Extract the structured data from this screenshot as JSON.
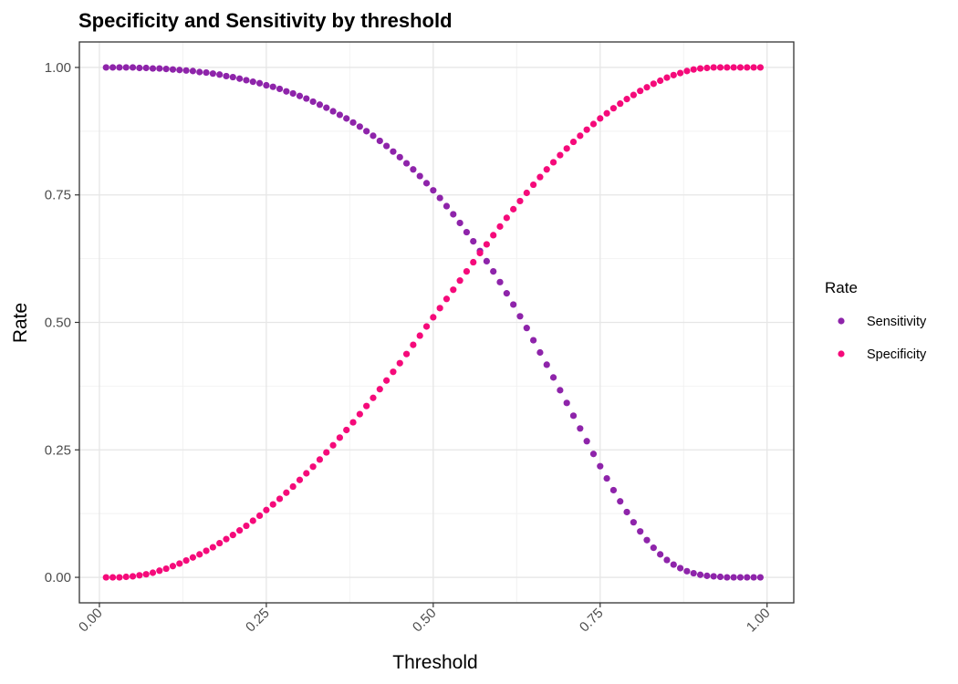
{
  "chart_data": {
    "type": "scatter",
    "title": "Specificity and Sensitivity by threshold",
    "xlabel": "Threshold",
    "ylabel": "Rate",
    "xlim": [
      -0.03,
      1.04
    ],
    "ylim": [
      -0.05,
      1.05
    ],
    "x_ticks": [
      0.0,
      0.25,
      0.5,
      0.75,
      1.0
    ],
    "x_tick_labels": [
      "0.00",
      "0.25",
      "0.50",
      "0.75",
      "1.00"
    ],
    "y_ticks": [
      0.0,
      0.25,
      0.5,
      0.75,
      1.0
    ],
    "y_tick_labels": [
      "0.00",
      "0.25",
      "0.50",
      "0.75",
      "1.00"
    ],
    "grid": true,
    "legend": {
      "title": "Rate",
      "placement": "right"
    },
    "x": [
      0.01,
      0.02,
      0.03,
      0.04,
      0.05,
      0.06,
      0.07,
      0.08,
      0.09,
      0.1,
      0.11,
      0.12,
      0.13,
      0.14,
      0.15,
      0.16,
      0.17,
      0.18,
      0.19,
      0.2,
      0.21,
      0.22,
      0.23,
      0.24,
      0.25,
      0.26,
      0.27,
      0.28,
      0.29,
      0.3,
      0.31,
      0.32,
      0.33,
      0.34,
      0.35,
      0.36,
      0.37,
      0.38,
      0.39,
      0.4,
      0.41,
      0.42,
      0.43,
      0.44,
      0.45,
      0.46,
      0.47,
      0.48,
      0.49,
      0.5,
      0.51,
      0.52,
      0.53,
      0.54,
      0.55,
      0.56,
      0.57,
      0.58,
      0.59,
      0.6,
      0.61,
      0.62,
      0.63,
      0.64,
      0.65,
      0.66,
      0.67,
      0.68,
      0.69,
      0.7,
      0.71,
      0.72,
      0.73,
      0.74,
      0.75,
      0.76,
      0.77,
      0.78,
      0.79,
      0.8,
      0.81,
      0.82,
      0.83,
      0.84,
      0.85,
      0.86,
      0.87,
      0.88,
      0.89,
      0.9,
      0.91,
      0.92,
      0.93,
      0.94,
      0.95,
      0.96,
      0.97,
      0.98,
      0.99
    ],
    "series": [
      {
        "name": "Sensitivity",
        "color": "#8E24AA",
        "values": [
          1.0,
          1.0,
          1.0,
          1.0,
          1.0,
          0.999,
          0.999,
          0.998,
          0.998,
          0.997,
          0.996,
          0.995,
          0.994,
          0.993,
          0.991,
          0.99,
          0.988,
          0.986,
          0.983,
          0.981,
          0.978,
          0.975,
          0.972,
          0.969,
          0.965,
          0.962,
          0.958,
          0.953,
          0.949,
          0.944,
          0.939,
          0.933,
          0.927,
          0.921,
          0.914,
          0.907,
          0.9,
          0.892,
          0.884,
          0.875,
          0.866,
          0.856,
          0.846,
          0.835,
          0.824,
          0.812,
          0.8,
          0.787,
          0.773,
          0.759,
          0.744,
          0.728,
          0.712,
          0.695,
          0.677,
          0.659,
          0.64,
          0.62,
          0.6,
          0.579,
          0.557,
          0.535,
          0.512,
          0.489,
          0.465,
          0.441,
          0.417,
          0.392,
          0.367,
          0.342,
          0.317,
          0.292,
          0.267,
          0.242,
          0.218,
          0.194,
          0.171,
          0.149,
          0.128,
          0.108,
          0.09,
          0.073,
          0.058,
          0.045,
          0.034,
          0.025,
          0.018,
          0.012,
          0.008,
          0.005,
          0.003,
          0.002,
          0.001,
          0.0,
          0.0,
          0.0,
          0.0,
          0.0,
          0.0
        ]
      },
      {
        "name": "Specificity",
        "color": "#F50A7A",
        "values": [
          0.0,
          0.0,
          0.0,
          0.001,
          0.002,
          0.004,
          0.006,
          0.009,
          0.013,
          0.017,
          0.022,
          0.027,
          0.033,
          0.039,
          0.045,
          0.052,
          0.059,
          0.067,
          0.075,
          0.083,
          0.092,
          0.101,
          0.111,
          0.121,
          0.132,
          0.143,
          0.154,
          0.166,
          0.178,
          0.191,
          0.204,
          0.217,
          0.231,
          0.245,
          0.259,
          0.274,
          0.289,
          0.304,
          0.32,
          0.336,
          0.352,
          0.369,
          0.386,
          0.403,
          0.42,
          0.438,
          0.456,
          0.474,
          0.492,
          0.51,
          0.528,
          0.546,
          0.564,
          0.582,
          0.6,
          0.618,
          0.636,
          0.653,
          0.671,
          0.688,
          0.705,
          0.722,
          0.738,
          0.754,
          0.77,
          0.785,
          0.8,
          0.814,
          0.828,
          0.841,
          0.854,
          0.866,
          0.878,
          0.889,
          0.9,
          0.91,
          0.92,
          0.929,
          0.938,
          0.946,
          0.954,
          0.961,
          0.968,
          0.974,
          0.98,
          0.985,
          0.989,
          0.993,
          0.996,
          0.998,
          0.999,
          1.0,
          1.0,
          1.0,
          1.0,
          1.0,
          1.0,
          1.0,
          1.0
        ]
      }
    ]
  }
}
